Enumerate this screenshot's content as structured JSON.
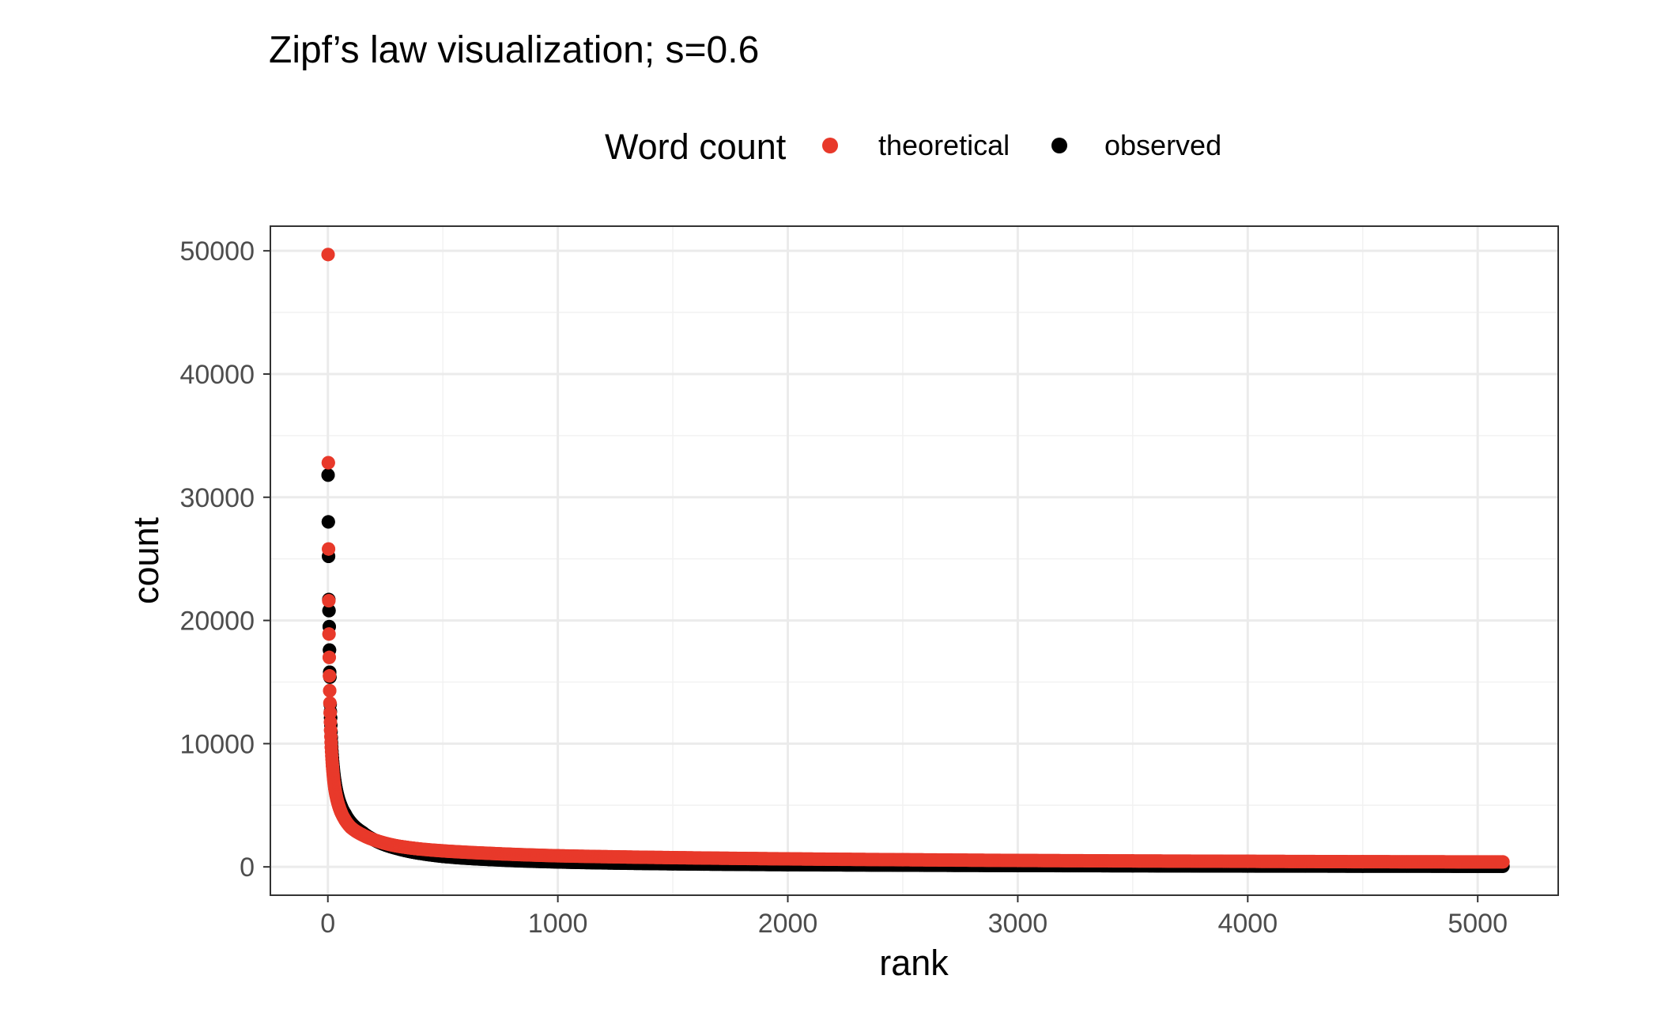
{
  "chart_data": {
    "type": "scatter",
    "title": "Zipf’s law visualization; s=0.6",
    "xlabel": "rank",
    "ylabel": "count",
    "xlim": [
      -250,
      5350
    ],
    "ylim": [
      -2300,
      52000
    ],
    "x_ticks": [
      0,
      1000,
      2000,
      3000,
      4000,
      5000
    ],
    "y_ticks": [
      0,
      10000,
      20000,
      30000,
      40000,
      50000
    ],
    "x_tick_labels": [
      "0",
      "1000",
      "2000",
      "3000",
      "4000",
      "5000"
    ],
    "y_tick_labels": [
      "0",
      "10000",
      "20000",
      "30000",
      "40000",
      "50000"
    ],
    "grid": true,
    "legend": {
      "title": "Word count",
      "position": "top"
    },
    "x_max_rank": 5110,
    "series": [
      {
        "name": "theoretical",
        "color": "#e8392a",
        "points": [
          [
            1,
            49700
          ],
          [
            2,
            32800
          ],
          [
            3,
            25800
          ],
          [
            4,
            21600
          ],
          [
            5,
            18900
          ],
          [
            6,
            17000
          ],
          [
            7,
            15500
          ],
          [
            8,
            14300
          ],
          [
            9,
            13300
          ],
          [
            10,
            12500
          ],
          [
            12,
            11100
          ],
          [
            15,
            9700
          ],
          [
            20,
            8200
          ],
          [
            30,
            6400
          ],
          [
            50,
            4800
          ],
          [
            75,
            3800
          ],
          [
            100,
            3200
          ],
          [
            150,
            2600
          ],
          [
            200,
            2200
          ],
          [
            300,
            1700
          ],
          [
            400,
            1450
          ],
          [
            500,
            1300
          ],
          [
            700,
            1100
          ],
          [
            1000,
            900
          ],
          [
            1500,
            750
          ],
          [
            2000,
            650
          ],
          [
            2500,
            580
          ],
          [
            3000,
            520
          ],
          [
            3500,
            480
          ],
          [
            4000,
            450
          ],
          [
            4500,
            420
          ],
          [
            5110,
            400
          ]
        ]
      },
      {
        "name": "observed",
        "color": "#000000",
        "points": [
          [
            1,
            31800
          ],
          [
            2,
            28000
          ],
          [
            3,
            25200
          ],
          [
            4,
            21700
          ],
          [
            5,
            20800
          ],
          [
            6,
            19500
          ],
          [
            7,
            17600
          ],
          [
            8,
            15800
          ],
          [
            9,
            15400
          ],
          [
            10,
            13200
          ],
          [
            12,
            12100
          ],
          [
            15,
            10500
          ],
          [
            20,
            8800
          ],
          [
            30,
            7000
          ],
          [
            50,
            5300
          ],
          [
            75,
            4300
          ],
          [
            100,
            3600
          ],
          [
            150,
            2800
          ],
          [
            200,
            2200
          ],
          [
            300,
            1500
          ],
          [
            400,
            1100
          ],
          [
            500,
            850
          ],
          [
            700,
            600
          ],
          [
            1000,
            400
          ],
          [
            1500,
            250
          ],
          [
            2000,
            180
          ],
          [
            2500,
            140
          ],
          [
            3000,
            110
          ],
          [
            3500,
            90
          ],
          [
            4000,
            70
          ],
          [
            4500,
            60
          ],
          [
            5110,
            50
          ]
        ]
      }
    ]
  }
}
